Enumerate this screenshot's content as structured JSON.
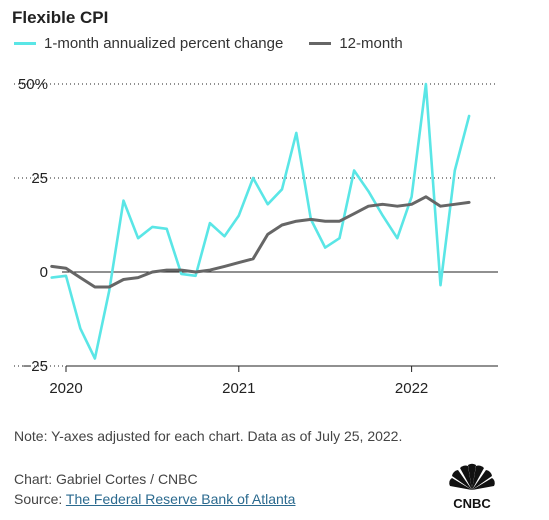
{
  "chart_data": {
    "type": "line",
    "title": "Flexible CPI",
    "x_tick_labels": [
      "2020",
      "2021",
      "2022"
    ],
    "y_tick_labels": [
      "50%",
      "25",
      "0",
      "−25"
    ],
    "y_ticks": [
      50,
      25,
      0,
      -25
    ],
    "ylim": [
      -25,
      50
    ],
    "xlim": [
      2020,
      2022.5
    ],
    "grid": "horizontal dotted",
    "legend_position": "top-left",
    "series": [
      {
        "name": "1-month annualized percent change",
        "color": "#5ae6e6",
        "x": [
          2019.917,
          2020.0,
          2020.083,
          2020.167,
          2020.25,
          2020.333,
          2020.417,
          2020.5,
          2020.583,
          2020.667,
          2020.75,
          2020.833,
          2020.917,
          2021.0,
          2021.083,
          2021.167,
          2021.25,
          2021.333,
          2021.417,
          2021.5,
          2021.583,
          2021.667,
          2021.75,
          2021.833,
          2021.917,
          2022.0,
          2022.083,
          2022.167,
          2022.25,
          2022.333,
          2022.417
        ],
        "values": [
          -1.5,
          -1,
          -15,
          -23,
          -5,
          19,
          9,
          12,
          11.5,
          -0.5,
          -1,
          13,
          9.5,
          15,
          25,
          18,
          22,
          37,
          14,
          6.5,
          9,
          27,
          21.5,
          15,
          9,
          20,
          50,
          -3.5,
          27,
          41.5,
          null
        ]
      },
      {
        "name": "12-month",
        "color": "#666666",
        "x": [
          2019.917,
          2020.0,
          2020.083,
          2020.167,
          2020.25,
          2020.333,
          2020.417,
          2020.5,
          2020.583,
          2020.667,
          2020.75,
          2020.833,
          2020.917,
          2021.0,
          2021.083,
          2021.167,
          2021.25,
          2021.333,
          2021.417,
          2021.5,
          2021.583,
          2021.667,
          2021.75,
          2021.833,
          2021.917,
          2022.0,
          2022.083,
          2022.167,
          2022.25,
          2022.333,
          2022.417
        ],
        "values": [
          1.5,
          1,
          -1.5,
          -4,
          -4,
          -2,
          -1.5,
          0,
          0.5,
          0.5,
          0,
          0.5,
          1.5,
          2.5,
          3.5,
          10,
          12.5,
          13.5,
          14,
          13.5,
          13.5,
          15.5,
          17.5,
          18,
          17.5,
          18,
          20,
          17.5,
          18,
          18.5,
          null
        ]
      }
    ]
  },
  "footer": {
    "note": "Note: Y-axes adjusted for each chart. Data as of July 25, 2022.",
    "credit": "Chart: Gabriel Cortes / CNBC",
    "source_prefix": "Source: ",
    "source_link": "The Federal Reserve Bank of Atlanta"
  },
  "logo": {
    "text": "CNBC",
    "icon": "peacock-icon"
  }
}
